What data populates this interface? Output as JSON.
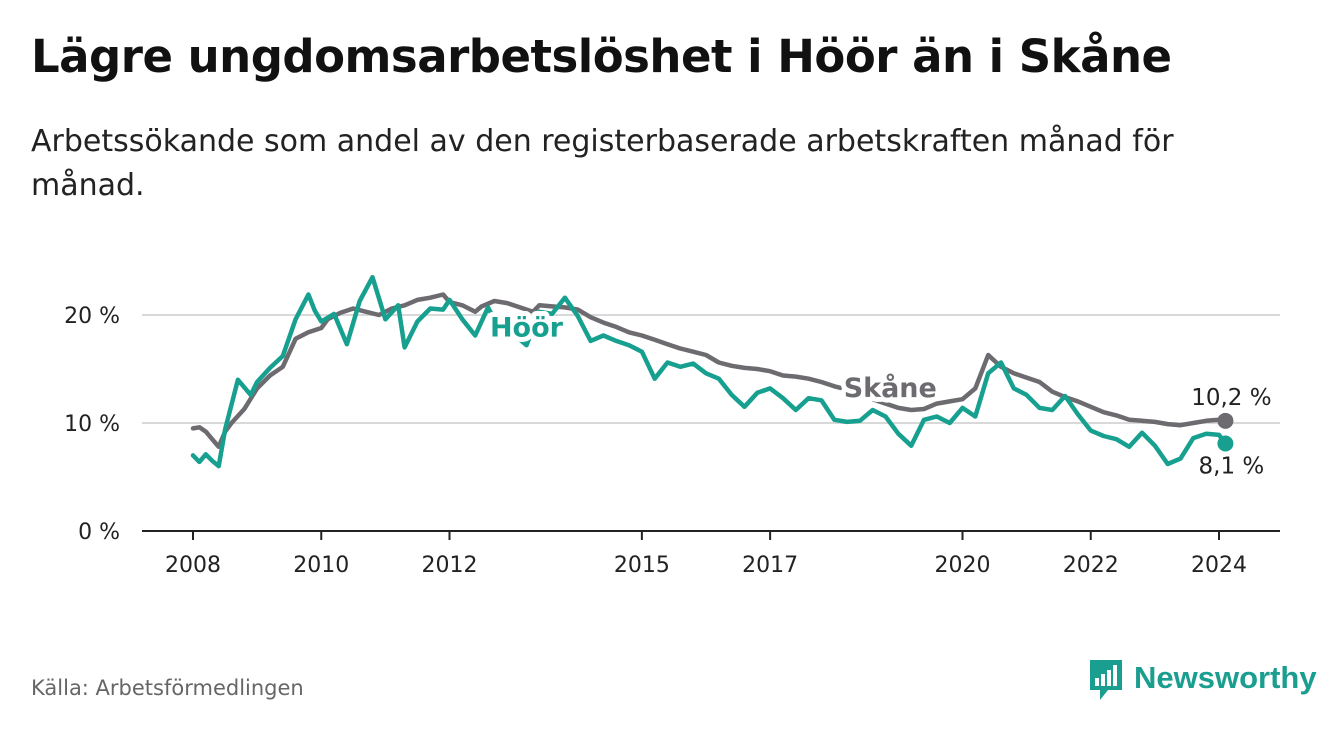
{
  "header": {
    "title": "Lägre ungdomsarbetslöshet i Höör än i Skåne",
    "subtitle": "Arbetssökande som andel av den registerbaserade arbetskraften månad för månad."
  },
  "footer": {
    "source": "Källa: Arbetsförmedlingen",
    "brand": "Newsworthy",
    "brand_color": "#1a9e8f"
  },
  "chart_data": {
    "type": "line",
    "title": "Lägre ungdomsarbetslöshet i Höör än i Skåne",
    "xlabel": "",
    "ylabel": "",
    "xlim": [
      2007.5,
      2024.9
    ],
    "ylim": [
      0,
      25
    ],
    "xticks": [
      {
        "value": 2008,
        "label": "2008"
      },
      {
        "value": 2010,
        "label": "2010"
      },
      {
        "value": 2012,
        "label": "2012"
      },
      {
        "value": 2015,
        "label": "2015"
      },
      {
        "value": 2017,
        "label": "2017"
      },
      {
        "value": 2020,
        "label": "2020"
      },
      {
        "value": 2022,
        "label": "2022"
      },
      {
        "value": 2024,
        "label": "2024"
      }
    ],
    "yticks": [
      {
        "value": 0,
        "label": "0 %"
      },
      {
        "value": 10,
        "label": "10 %"
      },
      {
        "value": 20,
        "label": "20 %"
      }
    ],
    "grid": true,
    "series": [
      {
        "name": "Skåne",
        "color": "#6d6b70",
        "end_label": "10,2 %",
        "x": [
          2008.0,
          2008.1,
          2008.2,
          2008.3,
          2008.4,
          2008.5,
          2008.6,
          2008.8,
          2009.0,
          2009.2,
          2009.4,
          2009.6,
          2009.8,
          2010.0,
          2010.1,
          2010.3,
          2010.5,
          2010.7,
          2010.9,
          2011.1,
          2011.3,
          2011.5,
          2011.7,
          2011.9,
          2012.0,
          2012.2,
          2012.4,
          2012.5,
          2012.7,
          2012.9,
          2013.1,
          2013.3,
          2013.4,
          2013.6,
          2013.8,
          2014.0,
          2014.2,
          2014.4,
          2014.6,
          2014.8,
          2015.0,
          2015.2,
          2015.4,
          2015.6,
          2015.8,
          2016.0,
          2016.2,
          2016.4,
          2016.6,
          2016.8,
          2017.0,
          2017.2,
          2017.4,
          2017.6,
          2017.8,
          2018.0,
          2018.2,
          2018.4,
          2018.6,
          2018.8,
          2019.0,
          2019.2,
          2019.4,
          2019.6,
          2019.8,
          2020.0,
          2020.2,
          2020.4,
          2020.6,
          2020.8,
          2021.0,
          2021.2,
          2021.4,
          2021.6,
          2021.8,
          2022.0,
          2022.2,
          2022.4,
          2022.6,
          2022.8,
          2023.0,
          2023.2,
          2023.4,
          2023.6,
          2023.8,
          2024.0,
          2024.1
        ],
        "values": [
          9.5,
          9.6,
          9.2,
          8.5,
          7.8,
          9.2,
          10.0,
          11.3,
          13.2,
          14.4,
          15.2,
          17.8,
          18.4,
          18.8,
          19.6,
          20.2,
          20.6,
          20.3,
          20.0,
          20.6,
          20.9,
          21.4,
          21.6,
          21.9,
          21.2,
          20.9,
          20.3,
          20.8,
          21.3,
          21.1,
          20.7,
          20.3,
          20.9,
          20.8,
          20.7,
          20.5,
          19.8,
          19.3,
          18.9,
          18.4,
          18.1,
          17.7,
          17.3,
          16.9,
          16.6,
          16.3,
          15.6,
          15.3,
          15.1,
          15.0,
          14.8,
          14.4,
          14.3,
          14.1,
          13.8,
          13.4,
          13.1,
          12.7,
          12.2,
          11.8,
          11.4,
          11.2,
          11.3,
          11.8,
          12.0,
          12.2,
          13.2,
          16.3,
          15.2,
          14.6,
          14.2,
          13.8,
          12.9,
          12.4,
          12.0,
          11.5,
          11.0,
          10.7,
          10.3,
          10.2,
          10.1,
          9.9,
          9.8,
          10.0,
          10.2,
          10.3,
          10.2
        ]
      },
      {
        "name": "Höör",
        "color": "#17a08f",
        "end_label": "8,1 %",
        "x": [
          2008.0,
          2008.1,
          2008.2,
          2008.3,
          2008.4,
          2008.5,
          2008.7,
          2008.9,
          2009.0,
          2009.2,
          2009.4,
          2009.6,
          2009.8,
          2009.9,
          2010.0,
          2010.2,
          2010.4,
          2010.6,
          2010.8,
          2011.0,
          2011.2,
          2011.3,
          2011.5,
          2011.7,
          2011.9,
          2012.0,
          2012.2,
          2012.4,
          2012.6,
          2012.8,
          2013.0,
          2013.2,
          2013.4,
          2013.6,
          2013.8,
          2014.0,
          2014.2,
          2014.4,
          2014.6,
          2014.8,
          2015.0,
          2015.2,
          2015.4,
          2015.6,
          2015.8,
          2016.0,
          2016.2,
          2016.4,
          2016.6,
          2016.8,
          2017.0,
          2017.2,
          2017.4,
          2017.6,
          2017.8,
          2018.0,
          2018.2,
          2018.4,
          2018.6,
          2018.8,
          2019.0,
          2019.2,
          2019.4,
          2019.6,
          2019.8,
          2020.0,
          2020.2,
          2020.4,
          2020.6,
          2020.8,
          2021.0,
          2021.2,
          2021.4,
          2021.6,
          2021.8,
          2022.0,
          2022.2,
          2022.4,
          2022.6,
          2022.8,
          2023.0,
          2023.2,
          2023.4,
          2023.6,
          2023.8,
          2024.0,
          2024.1
        ],
        "values": [
          7.0,
          6.4,
          7.1,
          6.5,
          6.0,
          9.4,
          14.0,
          12.6,
          13.8,
          15.1,
          16.2,
          19.6,
          21.9,
          20.4,
          19.4,
          20.1,
          17.3,
          21.3,
          23.5,
          19.6,
          20.9,
          17.0,
          19.4,
          20.6,
          20.5,
          21.4,
          19.6,
          18.1,
          20.7,
          18.4,
          18.2,
          17.2,
          20.3,
          20.1,
          21.6,
          19.9,
          17.6,
          18.1,
          17.6,
          17.2,
          16.6,
          14.1,
          15.6,
          15.2,
          15.5,
          14.6,
          14.1,
          12.6,
          11.5,
          12.8,
          13.2,
          12.3,
          11.2,
          12.3,
          12.1,
          10.3,
          10.1,
          10.2,
          11.2,
          10.6,
          9.0,
          7.9,
          10.3,
          10.6,
          10.0,
          11.4,
          10.6,
          14.6,
          15.6,
          13.2,
          12.6,
          11.4,
          11.2,
          12.5,
          10.8,
          9.3,
          8.8,
          8.5,
          7.8,
          9.1,
          7.9,
          6.2,
          6.7,
          8.6,
          9.0,
          8.9,
          8.1
        ]
      }
    ]
  }
}
